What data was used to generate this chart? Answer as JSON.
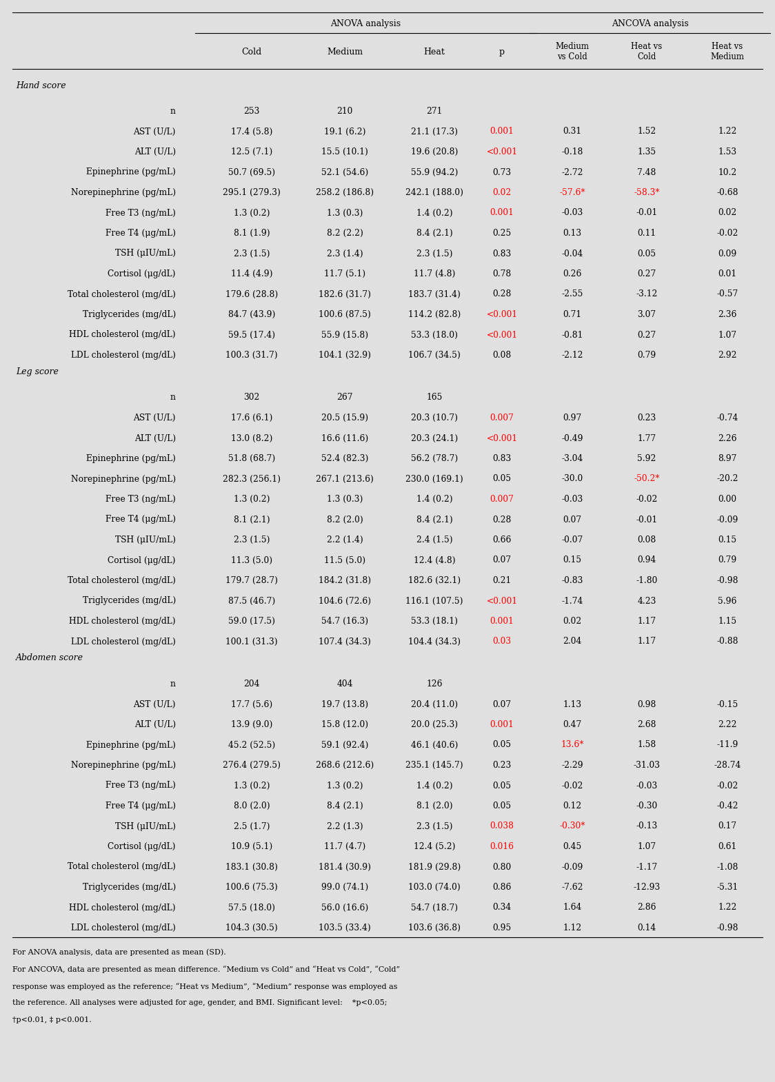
{
  "bg_color": "#e0e0e0",
  "sections": [
    {
      "section_label": "Hand score",
      "rows": [
        {
          "label": "n",
          "cold": "253",
          "medium": "210",
          "heat": "271",
          "p": "",
          "mvc": "",
          "hvc": "",
          "hvm": "",
          "p_red": false,
          "mvc_red": false,
          "hvc_red": false,
          "hvm_red": false
        },
        {
          "label": "AST (U/L)",
          "cold": "17.4 (5.8)",
          "medium": "19.1 (6.2)",
          "heat": "21.1 (17.3)",
          "p": "0.001",
          "mvc": "0.31",
          "hvc": "1.52",
          "hvm": "1.22",
          "p_red": true,
          "mvc_red": false,
          "hvc_red": false,
          "hvm_red": false
        },
        {
          "label": "ALT (U/L)",
          "cold": "12.5 (7.1)",
          "medium": "15.5 (10.1)",
          "heat": "19.6 (20.8)",
          "p": "<0.001",
          "mvc": "-0.18",
          "hvc": "1.35",
          "hvm": "1.53",
          "p_red": true,
          "mvc_red": false,
          "hvc_red": false,
          "hvm_red": false
        },
        {
          "label": "Epinephrine (pg/mL)",
          "cold": "50.7 (69.5)",
          "medium": "52.1 (54.6)",
          "heat": "55.9 (94.2)",
          "p": "0.73",
          "mvc": "-2.72",
          "hvc": "7.48",
          "hvm": "10.2",
          "p_red": false,
          "mvc_red": false,
          "hvc_red": false,
          "hvm_red": false
        },
        {
          "label": "Norepinephrine (pg/mL)",
          "cold": "295.1 (279.3)",
          "medium": "258.2 (186.8)",
          "heat": "242.1 (188.0)",
          "p": "0.02",
          "mvc": "-57.6*",
          "hvc": "-58.3*",
          "hvm": "-0.68",
          "p_red": true,
          "mvc_red": true,
          "hvc_red": true,
          "hvm_red": false
        },
        {
          "label": "Free T3 (ng/mL)",
          "cold": "1.3 (0.2)",
          "medium": "1.3 (0.3)",
          "heat": "1.4 (0.2)",
          "p": "0.001",
          "mvc": "-0.03",
          "hvc": "-0.01",
          "hvm": "0.02",
          "p_red": true,
          "mvc_red": false,
          "hvc_red": false,
          "hvm_red": false
        },
        {
          "label": "Free T4 (μg/mL)",
          "cold": "8.1 (1.9)",
          "medium": "8.2 (2.2)",
          "heat": "8.4 (2.1)",
          "p": "0.25",
          "mvc": "0.13",
          "hvc": "0.11",
          "hvm": "-0.02",
          "p_red": false,
          "mvc_red": false,
          "hvc_red": false,
          "hvm_red": false
        },
        {
          "label": "TSH (μIU/mL)",
          "cold": "2.3 (1.5)",
          "medium": "2.3 (1.4)",
          "heat": "2.3 (1.5)",
          "p": "0.83",
          "mvc": "-0.04",
          "hvc": "0.05",
          "hvm": "0.09",
          "p_red": false,
          "mvc_red": false,
          "hvc_red": false,
          "hvm_red": false
        },
        {
          "label": "Cortisol (μg/dL)",
          "cold": "11.4 (4.9)",
          "medium": "11.7 (5.1)",
          "heat": "11.7 (4.8)",
          "p": "0.78",
          "mvc": "0.26",
          "hvc": "0.27",
          "hvm": "0.01",
          "p_red": false,
          "mvc_red": false,
          "hvc_red": false,
          "hvm_red": false
        },
        {
          "label": "Total cholesterol (mg/dL)",
          "cold": "179.6 (28.8)",
          "medium": "182.6 (31.7)",
          "heat": "183.7 (31.4)",
          "p": "0.28",
          "mvc": "-2.55",
          "hvc": "-3.12",
          "hvm": "-0.57",
          "p_red": false,
          "mvc_red": false,
          "hvc_red": false,
          "hvm_red": false
        },
        {
          "label": "Triglycerides (mg/dL)",
          "cold": "84.7 (43.9)",
          "medium": "100.6 (87.5)",
          "heat": "114.2 (82.8)",
          "p": "<0.001",
          "mvc": "0.71",
          "hvc": "3.07",
          "hvm": "2.36",
          "p_red": true,
          "mvc_red": false,
          "hvc_red": false,
          "hvm_red": false
        },
        {
          "label": "HDL cholesterol (mg/dL)",
          "cold": "59.5 (17.4)",
          "medium": "55.9 (15.8)",
          "heat": "53.3 (18.0)",
          "p": "<0.001",
          "mvc": "-0.81",
          "hvc": "0.27",
          "hvm": "1.07",
          "p_red": true,
          "mvc_red": false,
          "hvc_red": false,
          "hvm_red": false
        },
        {
          "label": "LDL cholesterol (mg/dL)",
          "cold": "100.3 (31.7)",
          "medium": "104.1 (32.9)",
          "heat": "106.7 (34.5)",
          "p": "0.08",
          "mvc": "-2.12",
          "hvc": "0.79",
          "hvm": "2.92",
          "p_red": false,
          "mvc_red": false,
          "hvc_red": false,
          "hvm_red": false
        }
      ]
    },
    {
      "section_label": "Leg score",
      "rows": [
        {
          "label": "n",
          "cold": "302",
          "medium": "267",
          "heat": "165",
          "p": "",
          "mvc": "",
          "hvc": "",
          "hvm": "",
          "p_red": false,
          "mvc_red": false,
          "hvc_red": false,
          "hvm_red": false
        },
        {
          "label": "AST (U/L)",
          "cold": "17.6 (6.1)",
          "medium": "20.5 (15.9)",
          "heat": "20.3 (10.7)",
          "p": "0.007",
          "mvc": "0.97",
          "hvc": "0.23",
          "hvm": "-0.74",
          "p_red": true,
          "mvc_red": false,
          "hvc_red": false,
          "hvm_red": false
        },
        {
          "label": "ALT (U/L)",
          "cold": "13.0 (8.2)",
          "medium": "16.6 (11.6)",
          "heat": "20.3 (24.1)",
          "p": "<0.001",
          "mvc": "-0.49",
          "hvc": "1.77",
          "hvm": "2.26",
          "p_red": true,
          "mvc_red": false,
          "hvc_red": false,
          "hvm_red": false
        },
        {
          "label": "Epinephrine (pg/mL)",
          "cold": "51.8 (68.7)",
          "medium": "52.4 (82.3)",
          "heat": "56.2 (78.7)",
          "p": "0.83",
          "mvc": "-3.04",
          "hvc": "5.92",
          "hvm": "8.97",
          "p_red": false,
          "mvc_red": false,
          "hvc_red": false,
          "hvm_red": false
        },
        {
          "label": "Norepinephrine (pg/mL)",
          "cold": "282.3 (256.1)",
          "medium": "267.1 (213.6)",
          "heat": "230.0 (169.1)",
          "p": "0.05",
          "mvc": "-30.0",
          "hvc": "-50.2*",
          "hvm": "-20.2",
          "p_red": false,
          "mvc_red": false,
          "hvc_red": true,
          "hvm_red": false
        },
        {
          "label": "Free T3 (ng/mL)",
          "cold": "1.3 (0.2)",
          "medium": "1.3 (0.3)",
          "heat": "1.4 (0.2)",
          "p": "0.007",
          "mvc": "-0.03",
          "hvc": "-0.02",
          "hvm": "0.00",
          "p_red": true,
          "mvc_red": false,
          "hvc_red": false,
          "hvm_red": false
        },
        {
          "label": "Free T4 (μg/mL)",
          "cold": "8.1 (2.1)",
          "medium": "8.2 (2.0)",
          "heat": "8.4 (2.1)",
          "p": "0.28",
          "mvc": "0.07",
          "hvc": "-0.01",
          "hvm": "-0.09",
          "p_red": false,
          "mvc_red": false,
          "hvc_red": false,
          "hvm_red": false
        },
        {
          "label": "TSH (μIU/mL)",
          "cold": "2.3 (1.5)",
          "medium": "2.2 (1.4)",
          "heat": "2.4 (1.5)",
          "p": "0.66",
          "mvc": "-0.07",
          "hvc": "0.08",
          "hvm": "0.15",
          "p_red": false,
          "mvc_red": false,
          "hvc_red": false,
          "hvm_red": false
        },
        {
          "label": "Cortisol (μg/dL)",
          "cold": "11.3 (5.0)",
          "medium": "11.5 (5.0)",
          "heat": "12.4 (4.8)",
          "p": "0.07",
          "mvc": "0.15",
          "hvc": "0.94",
          "hvm": "0.79",
          "p_red": false,
          "mvc_red": false,
          "hvc_red": false,
          "hvm_red": false
        },
        {
          "label": "Total cholesterol (mg/dL)",
          "cold": "179.7 (28.7)",
          "medium": "184.2 (31.8)",
          "heat": "182.6 (32.1)",
          "p": "0.21",
          "mvc": "-0.83",
          "hvc": "-1.80",
          "hvm": "-0.98",
          "p_red": false,
          "mvc_red": false,
          "hvc_red": false,
          "hvm_red": false
        },
        {
          "label": "Triglycerides (mg/dL)",
          "cold": "87.5 (46.7)",
          "medium": "104.6 (72.6)",
          "heat": "116.1 (107.5)",
          "p": "<0.001",
          "mvc": "-1.74",
          "hvc": "4.23",
          "hvm": "5.96",
          "p_red": true,
          "mvc_red": false,
          "hvc_red": false,
          "hvm_red": false
        },
        {
          "label": "HDL cholesterol (mg/dL)",
          "cold": "59.0 (17.5)",
          "medium": "54.7 (16.3)",
          "heat": "53.3 (18.1)",
          "p": "0.001",
          "mvc": "0.02",
          "hvc": "1.17",
          "hvm": "1.15",
          "p_red": true,
          "mvc_red": false,
          "hvc_red": false,
          "hvm_red": false
        },
        {
          "label": "LDL cholesterol (mg/dL)",
          "cold": "100.1 (31.3)",
          "medium": "107.4 (34.3)",
          "heat": "104.4 (34.3)",
          "p": "0.03",
          "mvc": "2.04",
          "hvc": "1.17",
          "hvm": "-0.88",
          "p_red": true,
          "mvc_red": false,
          "hvc_red": false,
          "hvm_red": false
        }
      ]
    },
    {
      "section_label": "Abdomen score",
      "rows": [
        {
          "label": "n",
          "cold": "204",
          "medium": "404",
          "heat": "126",
          "p": "",
          "mvc": "",
          "hvc": "",
          "hvm": "",
          "p_red": false,
          "mvc_red": false,
          "hvc_red": false,
          "hvm_red": false
        },
        {
          "label": "AST (U/L)",
          "cold": "17.7 (5.6)",
          "medium": "19.7 (13.8)",
          "heat": "20.4 (11.0)",
          "p": "0.07",
          "mvc": "1.13",
          "hvc": "0.98",
          "hvm": "-0.15",
          "p_red": false,
          "mvc_red": false,
          "hvc_red": false,
          "hvm_red": false
        },
        {
          "label": "ALT (U/L)",
          "cold": "13.9 (9.0)",
          "medium": "15.8 (12.0)",
          "heat": "20.0 (25.3)",
          "p": "0.001",
          "mvc": "0.47",
          "hvc": "2.68",
          "hvm": "2.22",
          "p_red": true,
          "mvc_red": false,
          "hvc_red": false,
          "hvm_red": false
        },
        {
          "label": "Epinephrine (pg/mL)",
          "cold": "45.2 (52.5)",
          "medium": "59.1 (92.4)",
          "heat": "46.1 (40.6)",
          "p": "0.05",
          "mvc": "13.6*",
          "hvc": "1.58",
          "hvm": "-11.9",
          "p_red": false,
          "mvc_red": true,
          "hvc_red": false,
          "hvm_red": false
        },
        {
          "label": "Norepinephrine (pg/mL)",
          "cold": "276.4 (279.5)",
          "medium": "268.6 (212.6)",
          "heat": "235.1 (145.7)",
          "p": "0.23",
          "mvc": "-2.29",
          "hvc": "-31.03",
          "hvm": "-28.74",
          "p_red": false,
          "mvc_red": false,
          "hvc_red": false,
          "hvm_red": false
        },
        {
          "label": "Free T3 (ng/mL)",
          "cold": "1.3 (0.2)",
          "medium": "1.3 (0.2)",
          "heat": "1.4 (0.2)",
          "p": "0.05",
          "mvc": "-0.02",
          "hvc": "-0.03",
          "hvm": "-0.02",
          "p_red": false,
          "mvc_red": false,
          "hvc_red": false,
          "hvm_red": false
        },
        {
          "label": "Free T4 (μg/mL)",
          "cold": "8.0 (2.0)",
          "medium": "8.4 (2.1)",
          "heat": "8.1 (2.0)",
          "p": "0.05",
          "mvc": "0.12",
          "hvc": "-0.30",
          "hvm": "-0.42",
          "p_red": false,
          "mvc_red": false,
          "hvc_red": false,
          "hvm_red": false
        },
        {
          "label": "TSH (μIU/mL)",
          "cold": "2.5 (1.7)",
          "medium": "2.2 (1.3)",
          "heat": "2.3 (1.5)",
          "p": "0.038",
          "mvc": "-0.30*",
          "hvc": "-0.13",
          "hvm": "0.17",
          "p_red": true,
          "mvc_red": true,
          "hvc_red": false,
          "hvm_red": false
        },
        {
          "label": "Cortisol (μg/dL)",
          "cold": "10.9 (5.1)",
          "medium": "11.7 (4.7)",
          "heat": "12.4 (5.2)",
          "p": "0.016",
          "mvc": "0.45",
          "hvc": "1.07",
          "hvm": "0.61",
          "p_red": true,
          "mvc_red": false,
          "hvc_red": false,
          "hvm_red": false
        },
        {
          "label": "Total cholesterol (mg/dL)",
          "cold": "183.1 (30.8)",
          "medium": "181.4 (30.9)",
          "heat": "181.9 (29.8)",
          "p": "0.80",
          "mvc": "-0.09",
          "hvc": "-1.17",
          "hvm": "-1.08",
          "p_red": false,
          "mvc_red": false,
          "hvc_red": false,
          "hvm_red": false
        },
        {
          "label": "Triglycerides (mg/dL)",
          "cold": "100.6 (75.3)",
          "medium": "99.0 (74.1)",
          "heat": "103.0 (74.0)",
          "p": "0.86",
          "mvc": "-7.62",
          "hvc": "-12.93",
          "hvm": "-5.31",
          "p_red": false,
          "mvc_red": false,
          "hvc_red": false,
          "hvm_red": false
        },
        {
          "label": "HDL cholesterol (mg/dL)",
          "cold": "57.5 (18.0)",
          "medium": "56.0 (16.6)",
          "heat": "54.7 (18.7)",
          "p": "0.34",
          "mvc": "1.64",
          "hvc": "2.86",
          "hvm": "1.22",
          "p_red": false,
          "mvc_red": false,
          "hvc_red": false,
          "hvm_red": false
        },
        {
          "label": "LDL cholesterol (mg/dL)",
          "cold": "104.3 (30.5)",
          "medium": "103.5 (33.4)",
          "heat": "103.6 (36.8)",
          "p": "0.95",
          "mvc": "1.12",
          "hvc": "0.14",
          "hvm": "-0.98",
          "p_red": false,
          "mvc_red": false,
          "hvc_red": false,
          "hvm_red": false
        }
      ]
    }
  ],
  "footnote_lines": [
    "For ANOVA analysis, data are presented as mean (SD).",
    "For ANCOVA, data are presented as mean difference. “Medium vs Cold” and “Heat vs Cold”, “Cold”",
    "response was employed as the reference; “Heat vs Medium”, “Medium” response was employed as",
    "the reference. All analyses were adjusted for age, gender, and BMI. Significant level:    *p<0.05;",
    "†p<0.01, ‡ p<0.001."
  ]
}
